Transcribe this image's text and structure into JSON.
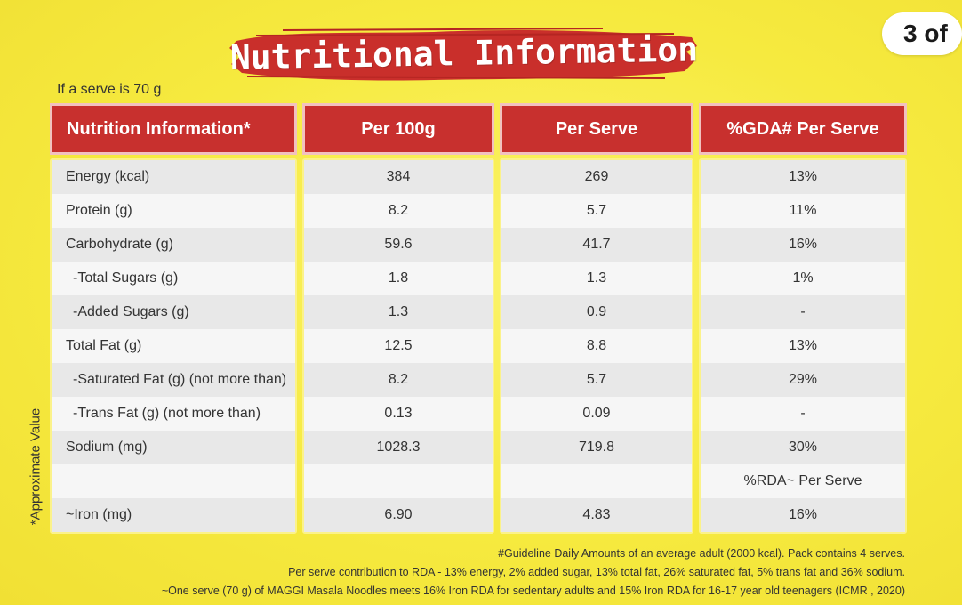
{
  "page_indicator": "3 of",
  "title": "Nutritional Information",
  "serve_note": "If a serve is 70 g",
  "side_label": "*Approximate Value",
  "headers": {
    "nutrient": "Nutrition Information*",
    "per_100g": "Per 100g",
    "per_serve": "Per Serve",
    "gda": "%GDA# Per Serve"
  },
  "rows": [
    {
      "label": "Energy (kcal)",
      "per_100g": "384",
      "per_serve": "269",
      "gda": "13%"
    },
    {
      "label": "Protein (g)",
      "per_100g": "8.2",
      "per_serve": "5.7",
      "gda": "11%"
    },
    {
      "label": "Carbohydrate (g)",
      "per_100g": "59.6",
      "per_serve": "41.7",
      "gda": "16%"
    },
    {
      "label": "-Total Sugars (g)",
      "per_100g": "1.8",
      "per_serve": "1.3",
      "gda": "1%"
    },
    {
      "label": "-Added Sugars (g)",
      "per_100g": "1.3",
      "per_serve": "0.9",
      "gda": "-"
    },
    {
      "label": "Total Fat (g)",
      "per_100g": "12.5",
      "per_serve": "8.8",
      "gda": "13%"
    },
    {
      "label": "-Saturated Fat (g) (not more than)",
      "per_100g": "8.2",
      "per_serve": "5.7",
      "gda": "29%"
    },
    {
      "label": "-Trans Fat (g) (not more than)",
      "per_100g": "0.13",
      "per_serve": "0.09",
      "gda": "-"
    },
    {
      "label": "Sodium (mg)",
      "per_100g": "1028.3",
      "per_serve": "719.8",
      "gda": "30%"
    },
    {
      "label": "",
      "per_100g": "",
      "per_serve": "",
      "gda": "%RDA~ Per Serve"
    },
    {
      "label": "~Iron (mg)",
      "per_100g": "6.90",
      "per_serve": "4.83",
      "gda": "16%"
    }
  ],
  "footnotes": [
    "#Guideline Daily Amounts of an average adult (2000 kcal). Pack contains 4 serves.",
    "Per serve contribution to RDA - 13% energy, 2% added sugar, 13% total fat, 26% saturated fat, 5% trans fat and 36% sodium.",
    "~One serve (70 g) of MAGGI Masala Noodles meets 16% Iron RDA for sedentary adults and 15% Iron RDA for 16-17 year old teenagers (ICMR , 2020)"
  ],
  "colors": {
    "background": "#f6ea3f",
    "header_red": "#c8302e",
    "row_odd": "#e8e8e8",
    "row_even": "#f6f6f6"
  }
}
